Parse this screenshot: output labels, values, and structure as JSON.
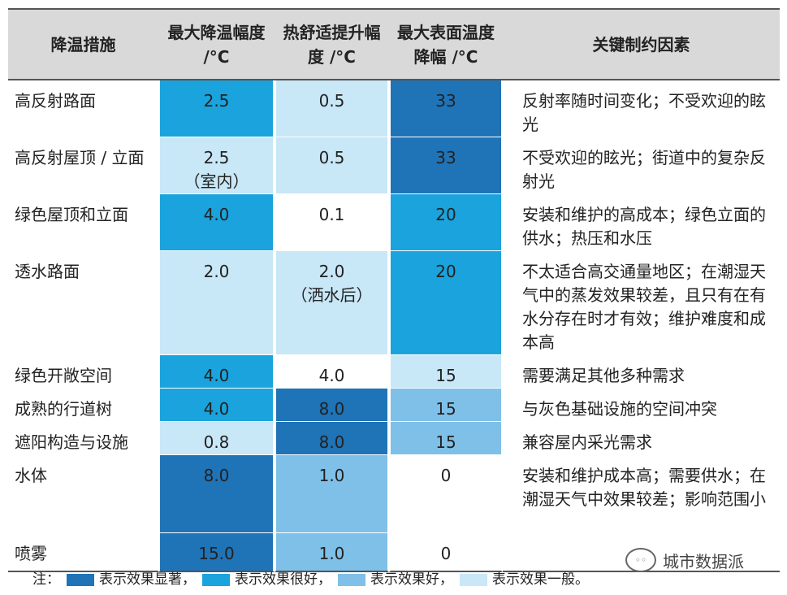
{
  "headers": {
    "measure": "降温措施",
    "max_cooling": "最大降温幅度 /°C",
    "comfort": "热舒适提升幅度 /°C",
    "surface": "最大表面温度降幅 /°C",
    "factors": "关键制约因素"
  },
  "rows": [
    {
      "name": "高反射路面",
      "max_cooling": "2.5",
      "max_cooling_note": "",
      "comfort": "0.5",
      "comfort_note": "",
      "surface": "33",
      "factors": "反射率随时间变化；不受欢迎的眩光",
      "levels": [
        "lv2",
        "lv4",
        "lv1"
      ]
    },
    {
      "name": "高反射屋顶 / 立面",
      "max_cooling": "2.5",
      "max_cooling_note": "（室内）",
      "comfort": "0.5",
      "comfort_note": "",
      "surface": "33",
      "factors": "不受欢迎的眩光；街道中的复杂反射光",
      "levels": [
        "lv4",
        "lv4",
        "lv1"
      ]
    },
    {
      "name": "绿色屋顶和立面",
      "max_cooling": "4.0",
      "max_cooling_note": "",
      "comfort": "0.1",
      "comfort_note": "",
      "surface": "20",
      "factors": "安装和维护的高成本；绿色立面的供水；热压和水压",
      "levels": [
        "lv2",
        "lv0",
        "lv2"
      ]
    },
    {
      "name": "透水路面",
      "max_cooling": "2.0",
      "max_cooling_note": "",
      "comfort": "2.0",
      "comfort_note": "（洒水后）",
      "surface": "20",
      "factors": "不太适合高交通量地区；在潮湿天气中的蒸发效果较差，且只有在有水分存在时才有效；维护难度和成本高",
      "levels": [
        "lv4",
        "lv4",
        "lv2"
      ]
    },
    {
      "name": "绿色开敞空间",
      "max_cooling": "4.0",
      "max_cooling_note": "",
      "comfort": "4.0",
      "comfort_note": "",
      "surface": "15",
      "factors": "需要满足其他多种需求",
      "levels": [
        "lv2",
        "lv0",
        "lv4"
      ]
    },
    {
      "name": "成熟的行道树",
      "max_cooling": "4.0",
      "max_cooling_note": "",
      "comfort": "8.0",
      "comfort_note": "",
      "surface": "15",
      "factors": "与灰色基础设施的空间冲突",
      "levels": [
        "lv2",
        "lv1",
        "lv3"
      ]
    },
    {
      "name": "遮阳构造与设施",
      "max_cooling": "0.8",
      "max_cooling_note": "",
      "comfort": "8.0",
      "comfort_note": "",
      "surface": "15",
      "factors": "兼容屋内采光需求",
      "levels": [
        "lv4",
        "lv1",
        "lv3"
      ]
    },
    {
      "name": "水体",
      "max_cooling": "8.0",
      "max_cooling_note": "",
      "comfort": "1.0",
      "comfort_note": "",
      "surface": "0",
      "factors": "安装和维护成本高；需要供水；在潮湿天气中效果较差；影响范围小",
      "levels": [
        "lv1",
        "lv3",
        "lv0"
      ]
    },
    {
      "name": "喷雾",
      "max_cooling": "15.0",
      "max_cooling_note": "",
      "comfort": "1.0",
      "comfort_note": "",
      "surface": "0",
      "factors": "",
      "levels": [
        "lv1",
        "lv3",
        "lv0"
      ]
    }
  ],
  "legend": {
    "prefix": "注：",
    "items": [
      {
        "label": "表示效果显著，",
        "color": "#1f73b7"
      },
      {
        "label": "表示效果很好，",
        "color": "#1aa3dc"
      },
      {
        "label": "表示效果好，",
        "color": "#7fc0e8"
      },
      {
        "label": "表示效果一般。",
        "color": "#c8e7f7"
      }
    ]
  },
  "watermark": {
    "text": "城市数据派",
    "icon": "wechat-icon"
  }
}
